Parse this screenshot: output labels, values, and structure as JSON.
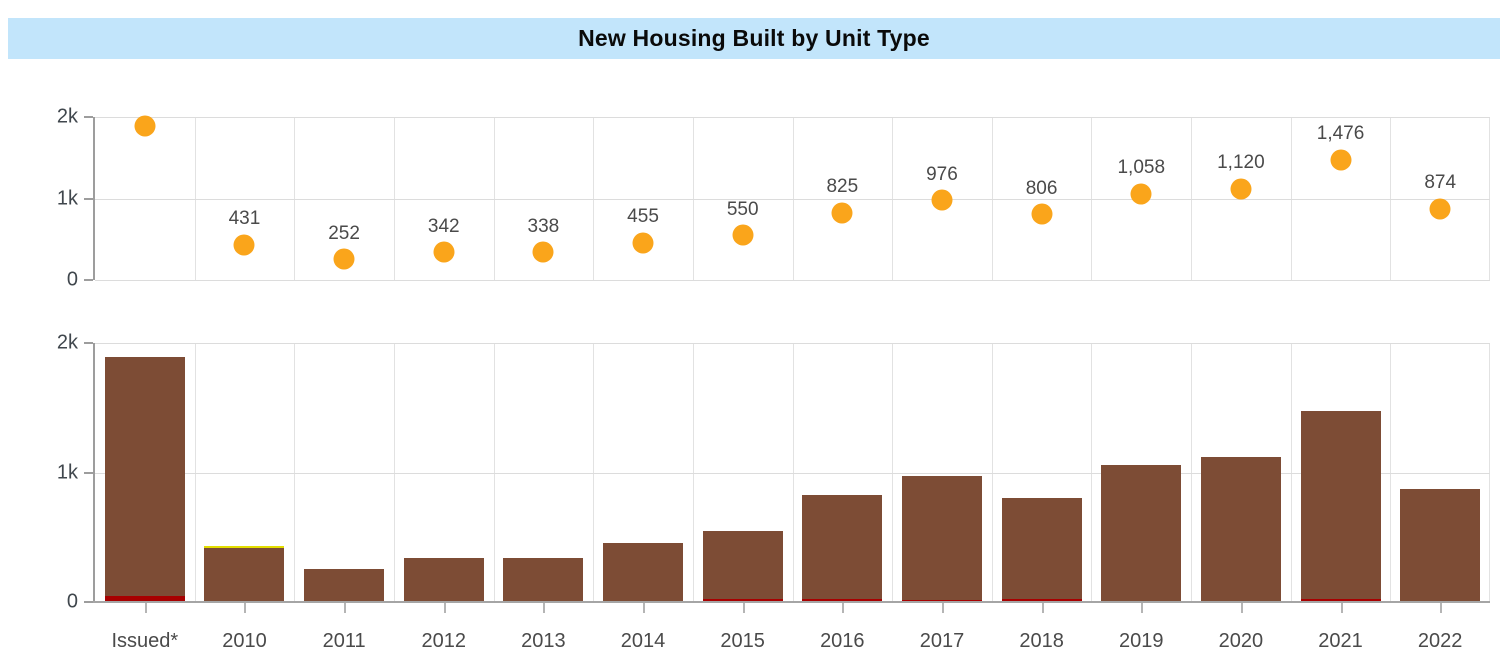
{
  "title": {
    "text": "New Housing Built by Unit Type",
    "bg_color": "#c2e5fb",
    "text_color": "#0a0a0a"
  },
  "colors": {
    "dot_orange": "#faa51b",
    "bar_brown": "#7d4c35",
    "bar_red": "#a80000",
    "bar_yellow": "#e3de00",
    "gridline": "#e2e2e2",
    "axis": "#9d9d9d",
    "tick_text": "#40474d",
    "label_text": "#4a4a4a"
  },
  "chart_data": [
    {
      "type": "scatter",
      "panel": "top",
      "categories": [
        "Issued*",
        "2010",
        "2011",
        "2012",
        "2013",
        "2014",
        "2015",
        "2016",
        "2017",
        "2018",
        "2019",
        "2020",
        "2021",
        "2022"
      ],
      "series": [
        {
          "name": "total-units",
          "color": "#faa51b",
          "values": [
            1890,
            431,
            252,
            342,
            338,
            455,
            550,
            825,
            976,
            806,
            1058,
            1120,
            1476,
            874
          ]
        }
      ],
      "data_labels": [
        "",
        "431",
        "252",
        "342",
        "338",
        "455",
        "550",
        "825",
        "976",
        "806",
        "1,058",
        "1,120",
        "1,476",
        "874"
      ],
      "ylim": [
        0,
        2000
      ],
      "yticks": [
        {
          "value": 0,
          "label": "0"
        },
        {
          "value": 1000,
          "label": "1k"
        },
        {
          "value": 2000,
          "label": "2k"
        }
      ],
      "grid": true,
      "legend": "none",
      "x_labels_shown": false
    },
    {
      "type": "bar",
      "stacked": true,
      "panel": "bottom",
      "categories": [
        "Issued*",
        "2010",
        "2011",
        "2012",
        "2013",
        "2014",
        "2015",
        "2016",
        "2017",
        "2018",
        "2019",
        "2020",
        "2021",
        "2022"
      ],
      "series": [
        {
          "name": "red-segment",
          "color": "#a80000",
          "values": [
            50,
            10,
            0,
            0,
            0,
            0,
            20,
            20,
            15,
            20,
            10,
            8,
            25,
            10
          ]
        },
        {
          "name": "brown-segment",
          "color": "#7d4c35",
          "values": [
            1840,
            406,
            252,
            342,
            338,
            455,
            530,
            805,
            961,
            786,
            1048,
            1112,
            1451,
            864
          ]
        },
        {
          "name": "yellow-segment",
          "color": "#e3de00",
          "values": [
            0,
            15,
            0,
            0,
            0,
            0,
            0,
            0,
            0,
            0,
            0,
            0,
            0,
            0
          ]
        }
      ],
      "ylim": [
        0,
        2000
      ],
      "yticks": [
        {
          "value": 0,
          "label": "0"
        },
        {
          "value": 1000,
          "label": "1k"
        },
        {
          "value": 2000,
          "label": "2k"
        }
      ],
      "grid": true,
      "legend": "none",
      "x_labels_shown": true
    }
  ]
}
